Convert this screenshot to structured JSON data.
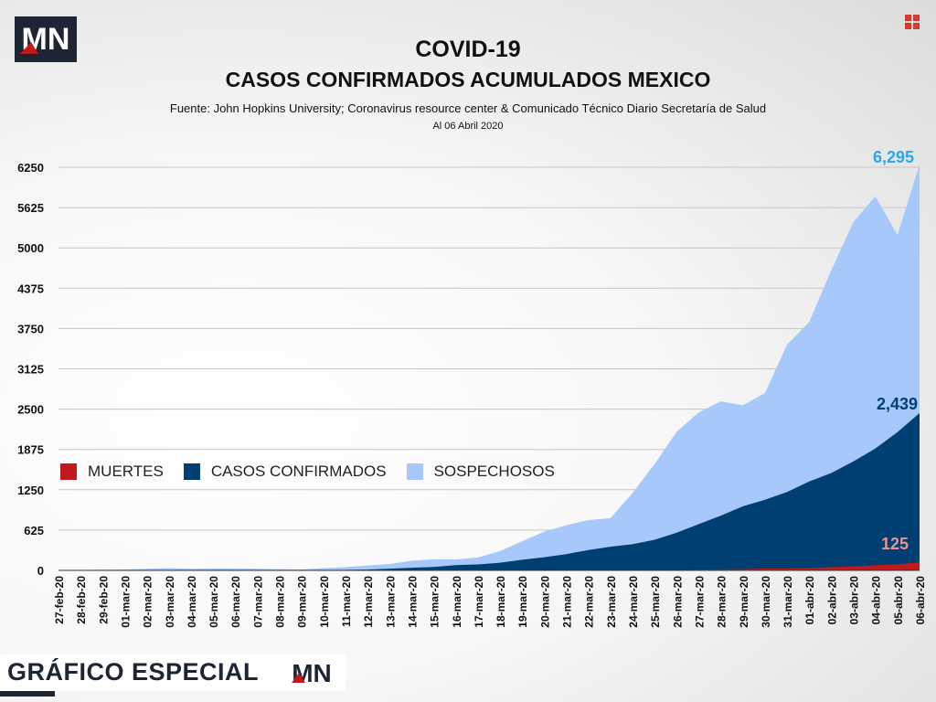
{
  "brand": {
    "logo": "MN",
    "footer_label": "GRÁFICO ESPECIAL"
  },
  "chart_data": {
    "type": "area",
    "title": "COVID-19",
    "subtitle": "CASOS CONFIRMADOS ACUMULADOS MEXICO",
    "source": "Fuente: John Hopkins University; Coronavirus resource center & Comunicado Técnico Diario Secretaría de Salud",
    "date_note": "Al 06 Abril 2020",
    "xlabel": "",
    "ylabel": "",
    "ylim": [
      0,
      6250
    ],
    "yticks": [
      0,
      625,
      1250,
      1875,
      2500,
      3125,
      3750,
      4375,
      5000,
      5625,
      6250
    ],
    "grid": true,
    "legend_position": "center-left",
    "x": [
      "27-feb-20",
      "28-feb-20",
      "29-feb-20",
      "01-mar-20",
      "02-mar-20",
      "03-mar-20",
      "04-mar-20",
      "05-mar-20",
      "06-mar-20",
      "07-mar-20",
      "08-mar-20",
      "09-mar-20",
      "10-mar-20",
      "11-mar-20",
      "12-mar-20",
      "13-mar-20",
      "14-mar-20",
      "15-mar-20",
      "16-mar-20",
      "17-mar-20",
      "18-mar-20",
      "19-mar-20",
      "20-mar-20",
      "21-mar-20",
      "22-mar-20",
      "23-mar-20",
      "24-mar-20",
      "25-mar-20",
      "26-mar-20",
      "27-mar-20",
      "28-mar-20",
      "29-mar-20",
      "30-mar-20",
      "31-mar-20",
      "01-abr-20",
      "02-abr-20",
      "03-abr-20",
      "04-abr-20",
      "05-abr-20",
      "06-abr-20"
    ],
    "series": [
      {
        "name": "SOSPECHOSOS",
        "color": "#a6c8fb",
        "values": [
          2,
          5,
          10,
          15,
          25,
          35,
          25,
          30,
          30,
          25,
          20,
          15,
          35,
          50,
          75,
          100,
          150,
          170,
          170,
          200,
          300,
          450,
          600,
          700,
          780,
          810,
          1200,
          1650,
          2150,
          2450,
          2620,
          2560,
          2750,
          3500,
          3850,
          4650,
          5400,
          5800,
          5200,
          6295
        ]
      },
      {
        "name": "CASOS CONFIRMADOS",
        "color": "#003f72",
        "values": [
          1,
          2,
          4,
          5,
          5,
          5,
          5,
          5,
          6,
          7,
          7,
          7,
          7,
          8,
          12,
          26,
          41,
          53,
          82,
          93,
          118,
          164,
          203,
          251,
          316,
          367,
          405,
          475,
          585,
          717,
          848,
          993,
          1094,
          1215,
          1378,
          1510,
          1688,
          1890,
          2143,
          2439
        ]
      },
      {
        "name": "MUERTES",
        "color": "#c0191e",
        "values": [
          0,
          0,
          0,
          0,
          0,
          0,
          0,
          0,
          0,
          0,
          0,
          0,
          0,
          0,
          0,
          0,
          0,
          0,
          0,
          0,
          1,
          1,
          2,
          2,
          4,
          4,
          5,
          6,
          8,
          12,
          16,
          20,
          28,
          29,
          37,
          50,
          60,
          79,
          94,
          125
        ]
      }
    ],
    "data_labels": [
      {
        "series": "SOSPECHOSOS",
        "text": "6,295",
        "color": "#2aa8ea"
      },
      {
        "series": "CASOS CONFIRMADOS",
        "text": "2,439",
        "color": "#003f72"
      },
      {
        "series": "MUERTES",
        "text": "125",
        "color": "#e9928f"
      }
    ],
    "legend": [
      "MUERTES",
      "CASOS CONFIRMADOS",
      "SOSPECHOSOS"
    ]
  },
  "colors": {
    "brand_navy": "#1d2433",
    "brand_red": "#c0191e",
    "grid": "#c6c6c6"
  }
}
